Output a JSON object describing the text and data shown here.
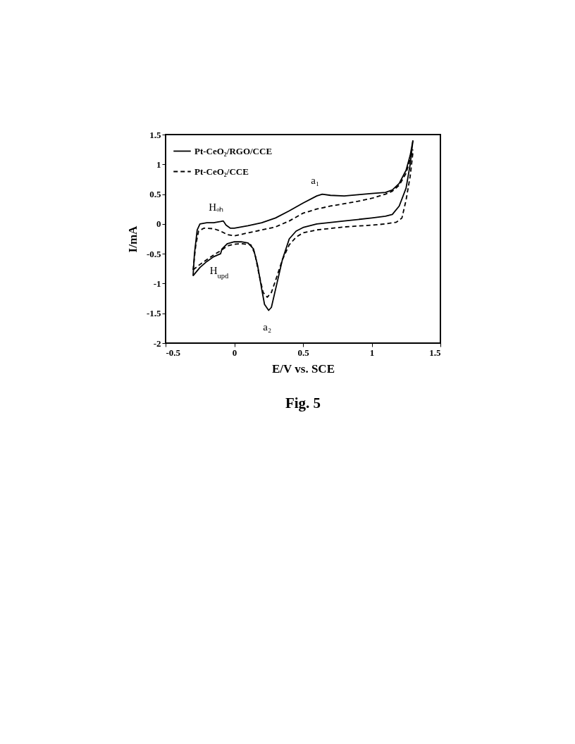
{
  "chart_data": {
    "type": "line",
    "xlabel": "E/V vs. SCE",
    "ylabel": "I/mA",
    "xlim": [
      -0.5,
      1.5
    ],
    "xticks": [
      -0.5,
      0,
      0.5,
      1,
      1.5
    ],
    "ylim": [
      -2,
      1.5
    ],
    "yticks": [
      -2,
      -1.5,
      -1,
      -0.5,
      0,
      0.5,
      1,
      1.5
    ],
    "grid": false,
    "legend": "top left",
    "marker": "none",
    "annotations": [
      {
        "text": "Hₒₕ",
        "x": -0.08,
        "y": 0.05
      },
      {
        "text": "H$_{upd}$",
        "x": -0.1,
        "y": -0.5
      },
      {
        "text": "a₁",
        "x": 0.64,
        "y": 0.5
      },
      {
        "text": "a₂",
        "x": 0.25,
        "y": -1.45
      },
      "Fig. 5"
    ],
    "series": [
      {
        "name": "Pt-CeO₂/RGO/CCE",
        "color": "#000000",
        "line_style": "solid",
        "x": [
          -0.3,
          -0.29,
          -0.27,
          -0.25,
          -0.2,
          -0.15,
          -0.1,
          -0.08,
          -0.06,
          -0.03,
          0,
          0.1,
          0.2,
          0.3,
          0.4,
          0.5,
          0.6,
          0.64,
          0.7,
          0.8,
          0.9,
          1.0,
          1.1,
          1.15,
          1.2,
          1.25,
          1.28,
          1.3
        ],
        "values": [
          -0.87,
          -0.5,
          -0.1,
          0.0,
          0.02,
          0.02,
          0.04,
          0.05,
          -0.02,
          -0.07,
          -0.07,
          -0.03,
          0.02,
          0.1,
          0.22,
          0.35,
          0.47,
          0.5,
          0.48,
          0.47,
          0.49,
          0.51,
          0.53,
          0.57,
          0.68,
          0.9,
          1.15,
          1.4
        ]
      },
      {
        "color": "#000000",
        "line_style": "solid",
        "x": [
          -0.3,
          -0.25,
          -0.2,
          -0.15,
          -0.1,
          -0.09,
          -0.05,
          0,
          0.05,
          0.1,
          0.14,
          0.17,
          0.2,
          0.22,
          0.25,
          0.27,
          0.3,
          0.35,
          0.4,
          0.45,
          0.5,
          0.6,
          0.8,
          1.0,
          1.1,
          1.15,
          1.2,
          1.25,
          1.28,
          1.3
        ],
        "values": [
          -0.87,
          -0.73,
          -0.63,
          -0.55,
          -0.5,
          -0.42,
          -0.33,
          -0.3,
          -0.3,
          -0.32,
          -0.42,
          -0.7,
          -1.1,
          -1.35,
          -1.45,
          -1.4,
          -1.1,
          -0.6,
          -0.25,
          -0.12,
          -0.06,
          0.0,
          0.05,
          0.1,
          0.13,
          0.16,
          0.3,
          0.6,
          1.0,
          1.4
        ]
      },
      {
        "name": "Pt-CeO₂/CCE",
        "color": "#000000",
        "line_style": "dashed",
        "x": [
          -0.3,
          -0.28,
          -0.26,
          -0.22,
          -0.15,
          -0.1,
          -0.05,
          0,
          0.1,
          0.2,
          0.3,
          0.4,
          0.5,
          0.6,
          0.7,
          0.8,
          0.9,
          1.0,
          1.1,
          1.15,
          1.2,
          1.25,
          1.3
        ],
        "values": [
          -0.77,
          -0.35,
          -0.12,
          -0.07,
          -0.08,
          -0.12,
          -0.18,
          -0.2,
          -0.15,
          -0.1,
          -0.05,
          0.05,
          0.18,
          0.25,
          0.3,
          0.34,
          0.38,
          0.43,
          0.5,
          0.55,
          0.65,
          0.85,
          1.25
        ]
      },
      {
        "color": "#000000",
        "line_style": "dashed",
        "x": [
          -0.3,
          -0.25,
          -0.2,
          -0.15,
          -0.1,
          -0.05,
          0,
          0.05,
          0.12,
          0.15,
          0.18,
          0.21,
          0.24,
          0.27,
          0.3,
          0.35,
          0.4,
          0.45,
          0.5,
          0.6,
          0.8,
          1.0,
          1.1,
          1.18,
          1.22,
          1.25,
          1.28,
          1.3
        ],
        "values": [
          -0.77,
          -0.68,
          -0.6,
          -0.52,
          -0.45,
          -0.37,
          -0.34,
          -0.33,
          -0.35,
          -0.5,
          -0.85,
          -1.15,
          -1.23,
          -1.15,
          -0.95,
          -0.6,
          -0.35,
          -0.22,
          -0.15,
          -0.1,
          -0.05,
          -0.02,
          0.0,
          0.03,
          0.1,
          0.4,
          0.8,
          1.2
        ]
      }
    ]
  }
}
